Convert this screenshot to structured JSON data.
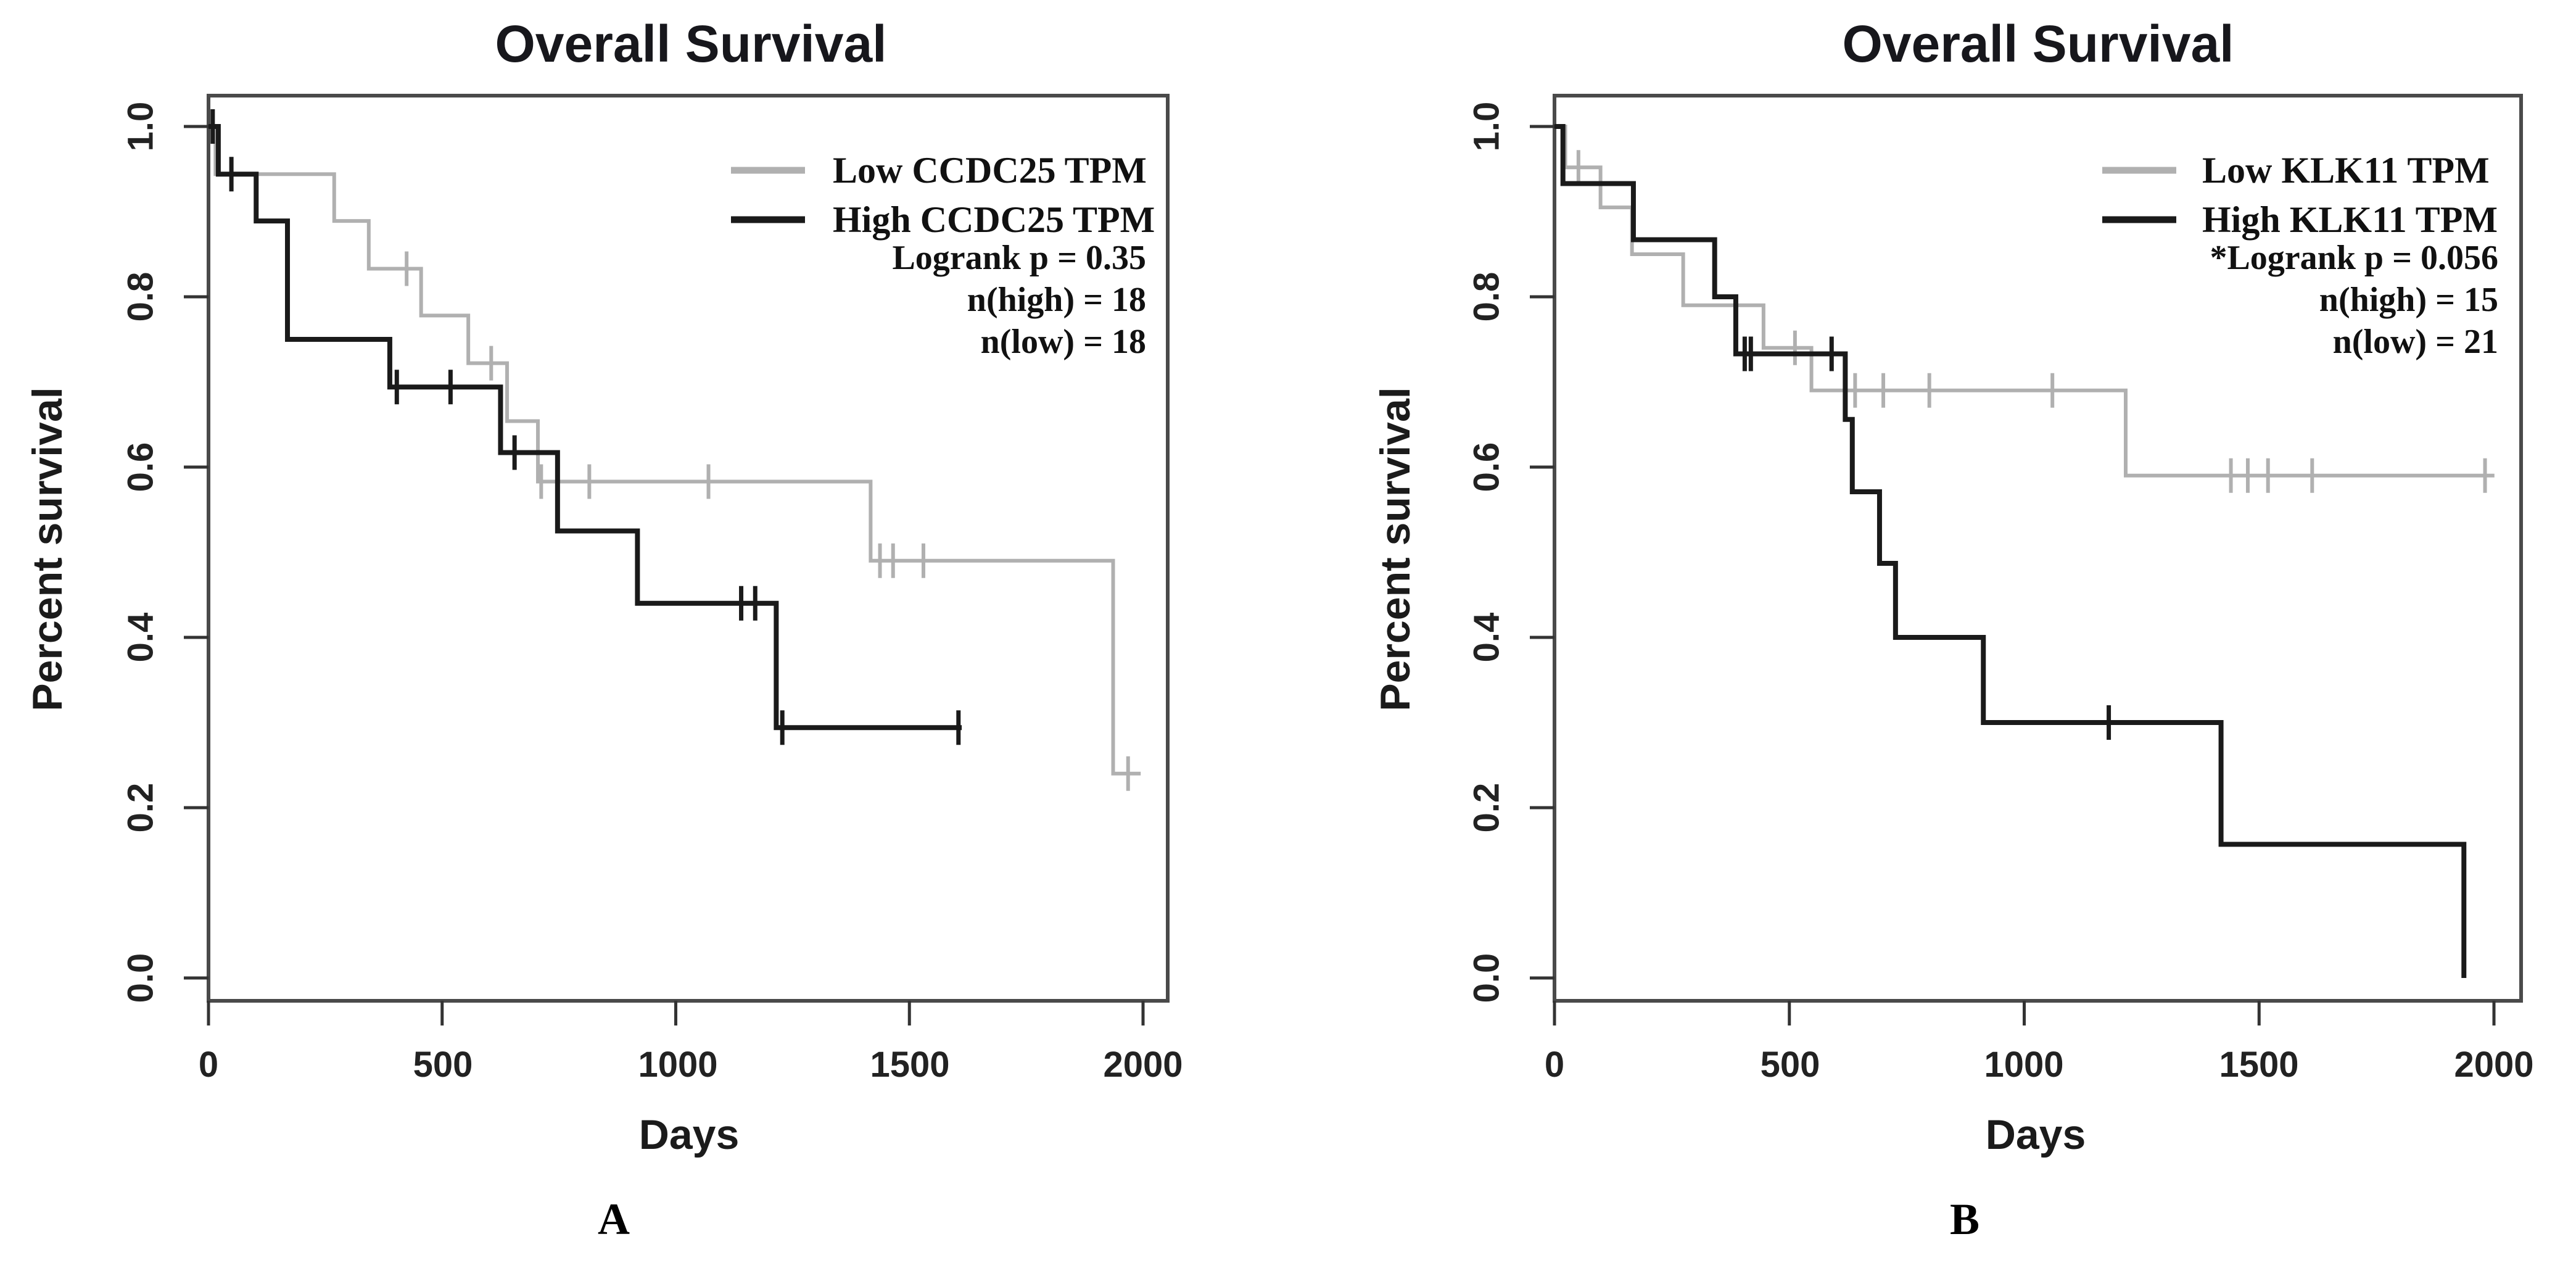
{
  "page": {
    "background": "#ffffff"
  },
  "chart_data": [
    {
      "panel_label": "A",
      "type": "line",
      "subtype": "kaplan-meier-step",
      "title": "Overall Survival",
      "xlabel": "Days",
      "ylabel": "Percent survival",
      "xlim": [
        0,
        2055
      ],
      "ylim": [
        0,
        1
      ],
      "grid": false,
      "legend_position": "top-right",
      "xticks": [
        0,
        500,
        1000,
        1500,
        2000
      ],
      "xtick_labels": [
        "0",
        "500",
        "1000",
        "1500",
        "2000"
      ],
      "yticks": [
        0.0,
        0.2,
        0.4,
        0.6,
        0.8,
        1.0
      ],
      "ytick_labels": [
        "0.0",
        "0.2",
        "0.4",
        "0.6",
        "0.8",
        "1.0"
      ],
      "legend": [
        {
          "label": "Low CCDC25 TPM",
          "color": "#b0b0b0"
        },
        {
          "label": "High CCDC25 TPM",
          "color": "#1a1a1a"
        }
      ],
      "annotations": [
        "Logrank p = 0.35",
        "n(high) = 18",
        "n(low) = 18"
      ],
      "series": [
        {
          "name": "Low CCDC25 TPM",
          "color": "#b0b0b0",
          "steps": [
            [
              0,
              1.0
            ],
            [
              15,
              0.944
            ],
            [
              269,
              0.889
            ],
            [
              343,
              0.833
            ],
            [
              455,
              0.778
            ],
            [
              556,
              0.722
            ],
            [
              639,
              0.654
            ],
            [
              705,
              0.583
            ],
            [
              1417,
              0.49
            ],
            [
              1936,
              0.24
            ],
            [
              1995,
              0.24
            ]
          ],
          "censors": [
            [
              424,
              0.833
            ],
            [
              605,
              0.722
            ],
            [
              712,
              0.583
            ],
            [
              815,
              0.583
            ],
            [
              1070,
              0.583
            ],
            [
              1437,
              0.49
            ],
            [
              1465,
              0.49
            ],
            [
              1530,
              0.49
            ],
            [
              1968,
              0.24
            ]
          ]
        },
        {
          "name": "High CCDC25 TPM",
          "color": "#1a1a1a",
          "steps": [
            [
              0,
              1.0
            ],
            [
              21,
              0.944
            ],
            [
              102,
              0.889
            ],
            [
              169,
              0.75
            ],
            [
              388,
              0.694
            ],
            [
              625,
              0.617
            ],
            [
              747,
              0.525
            ],
            [
              918,
              0.44
            ],
            [
              1215,
              0.294
            ],
            [
              1612,
              0.294
            ]
          ],
          "censors": [
            [
              9,
              1.0
            ],
            [
              49,
              0.944
            ],
            [
              403,
              0.694
            ],
            [
              518,
              0.694
            ],
            [
              655,
              0.617
            ],
            [
              1140,
              0.44
            ],
            [
              1170,
              0.44
            ],
            [
              1228,
              0.294
            ],
            [
              1605,
              0.294
            ]
          ]
        }
      ]
    },
    {
      "panel_label": "B",
      "type": "line",
      "subtype": "kaplan-meier-step",
      "title": "Overall Survival",
      "xlabel": "Days",
      "ylabel": "Percent survival",
      "xlim": [
        0,
        2055
      ],
      "ylim": [
        0,
        1
      ],
      "grid": false,
      "legend_position": "top-right",
      "xticks": [
        0,
        500,
        1000,
        1500,
        2000
      ],
      "xtick_labels": [
        "0",
        "500",
        "1000",
        "1500",
        "2000"
      ],
      "yticks": [
        0.0,
        0.2,
        0.4,
        0.6,
        0.8,
        1.0
      ],
      "ytick_labels": [
        "0.0",
        "0.2",
        "0.4",
        "0.6",
        "0.8",
        "1.0"
      ],
      "legend": [
        {
          "label": "Low KLK11 TPM",
          "color": "#b0b0b0"
        },
        {
          "label": "High KLK11 TPM",
          "color": "#1a1a1a"
        }
      ],
      "annotations": [
        "*Logrank p = 0.056",
        "n(high) = 15",
        "n(low) = 21"
      ],
      "series": [
        {
          "name": "Low KLK11 TPM",
          "color": "#b0b0b0",
          "steps": [
            [
              0,
              1.0
            ],
            [
              23,
              0.952
            ],
            [
              98,
              0.905
            ],
            [
              165,
              0.85
            ],
            [
              274,
              0.79
            ],
            [
              445,
              0.74
            ],
            [
              547,
              0.69
            ],
            [
              1216,
              0.59
            ],
            [
              2001,
              0.59
            ]
          ],
          "censors": [
            [
              51,
              0.952
            ],
            [
              512,
              0.74
            ],
            [
              640,
              0.69
            ],
            [
              700,
              0.69
            ],
            [
              798,
              0.69
            ],
            [
              1060,
              0.69
            ],
            [
              1440,
              0.59
            ],
            [
              1476,
              0.59
            ],
            [
              1519,
              0.59
            ],
            [
              1613,
              0.59
            ],
            [
              1981,
              0.59
            ]
          ]
        },
        {
          "name": "High KLK11 TPM",
          "color": "#1a1a1a",
          "steps": [
            [
              0,
              1.0
            ],
            [
              18,
              0.933
            ],
            [
              168,
              0.867
            ],
            [
              341,
              0.8
            ],
            [
              386,
              0.733
            ],
            [
              619,
              0.656
            ],
            [
              634,
              0.571
            ],
            [
              692,
              0.487
            ],
            [
              726,
              0.4
            ],
            [
              913,
              0.3
            ],
            [
              1419,
              0.157
            ],
            [
              1936,
              0.157
            ],
            [
              1936,
              0.0
            ]
          ],
          "censors": [
            [
              405,
              0.733
            ],
            [
              418,
              0.733
            ],
            [
              590,
              0.733
            ],
            [
              1180,
              0.3
            ]
          ]
        }
      ]
    }
  ]
}
